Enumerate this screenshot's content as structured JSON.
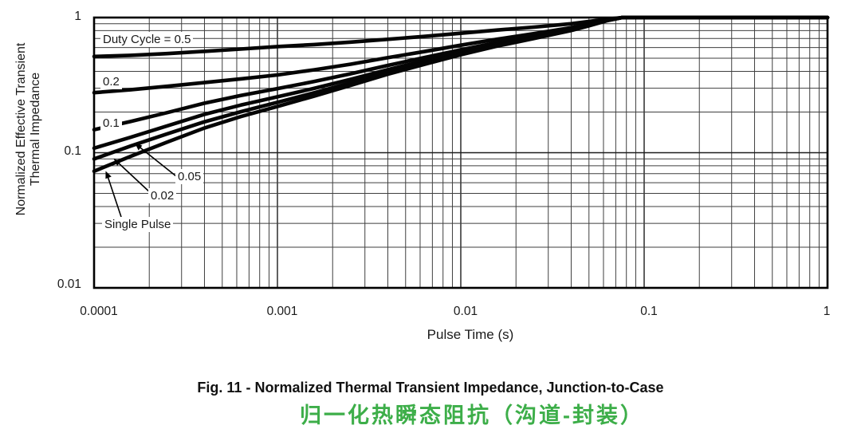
{
  "figure": {
    "caption_en": "Fig. 11 - Normalized Thermal Transient Impedance, Junction-to-Case",
    "caption_zh": "归一化热瞬态阻抗（沟道-封装）",
    "caption_zh_color": "#3DAE49"
  },
  "chart_data": {
    "type": "line",
    "title": "",
    "xlabel": "Pulse Time (s)",
    "ylabel_line1": "Normalized Effective Transient",
    "ylabel_line2": "Thermal Impedance",
    "x_scale": "log",
    "y_scale": "log",
    "xlim": [
      0.0001,
      1
    ],
    "ylim": [
      0.01,
      1
    ],
    "grid": true,
    "x_tick_labels": [
      "0.0001",
      "0.001",
      "0.01",
      "0.1",
      "1"
    ],
    "y_tick_labels": [
      "1",
      "0.1",
      "0.01"
    ],
    "curve_color": "#050505",
    "x": [
      0.0001,
      0.000158,
      0.000251,
      0.000398,
      0.000631,
      0.001,
      0.00158,
      0.00251,
      0.00398,
      0.00631,
      0.01,
      0.0158,
      0.0251,
      0.0398,
      0.0501,
      0.0631,
      0.0759,
      0.1,
      0.2,
      0.398,
      1
    ],
    "series": [
      {
        "name": "Duty Cycle = 0.5",
        "duty_cycle": 0.5,
        "values": [
          0.515,
          0.525,
          0.541,
          0.562,
          0.585,
          0.61,
          0.631,
          0.658,
          0.69,
          0.725,
          0.765,
          0.808,
          0.85,
          0.9,
          0.935,
          0.975,
          1.0,
          1.0,
          1.0,
          1.0,
          1.0
        ]
      },
      {
        "name": "0.2",
        "duty_cycle": 0.2,
        "values": [
          0.278,
          0.292,
          0.31,
          0.33,
          0.352,
          0.376,
          0.41,
          0.452,
          0.504,
          0.56,
          0.624,
          0.692,
          0.76,
          0.84,
          0.896,
          0.96,
          1.0,
          1.0,
          1.0,
          1.0,
          1.0
        ]
      },
      {
        "name": "0.1",
        "duty_cycle": 0.1,
        "values": [
          0.148,
          0.17,
          0.198,
          0.232,
          0.265,
          0.298,
          0.336,
          0.384,
          0.442,
          0.505,
          0.577,
          0.654,
          0.73,
          0.82,
          0.883,
          0.955,
          1.0,
          1.0,
          1.0,
          1.0,
          1.0
        ]
      },
      {
        "name": "0.05",
        "duty_cycle": 0.05,
        "values": [
          0.108,
          0.13,
          0.158,
          0.192,
          0.225,
          0.259,
          0.299,
          0.349,
          0.411,
          0.478,
          0.554,
          0.634,
          0.715,
          0.81,
          0.877,
          0.953,
          1.0,
          1.0,
          1.0,
          1.0,
          1.0
        ]
      },
      {
        "name": "0.02",
        "duty_cycle": 0.02,
        "values": [
          0.09,
          0.112,
          0.138,
          0.169,
          0.201,
          0.236,
          0.277,
          0.329,
          0.392,
          0.461,
          0.539,
          0.623,
          0.706,
          0.804,
          0.873,
          0.951,
          1.0,
          1.0,
          1.0,
          1.0,
          1.0
        ]
      },
      {
        "name": "Single Pulse",
        "duty_cycle": 0,
        "values": [
          0.073,
          0.094,
          0.12,
          0.152,
          0.185,
          0.22,
          0.262,
          0.315,
          0.38,
          0.45,
          0.53,
          0.615,
          0.7,
          0.8,
          0.87,
          0.95,
          1.0,
          1.0,
          1.0,
          1.0,
          1.0
        ]
      }
    ]
  }
}
